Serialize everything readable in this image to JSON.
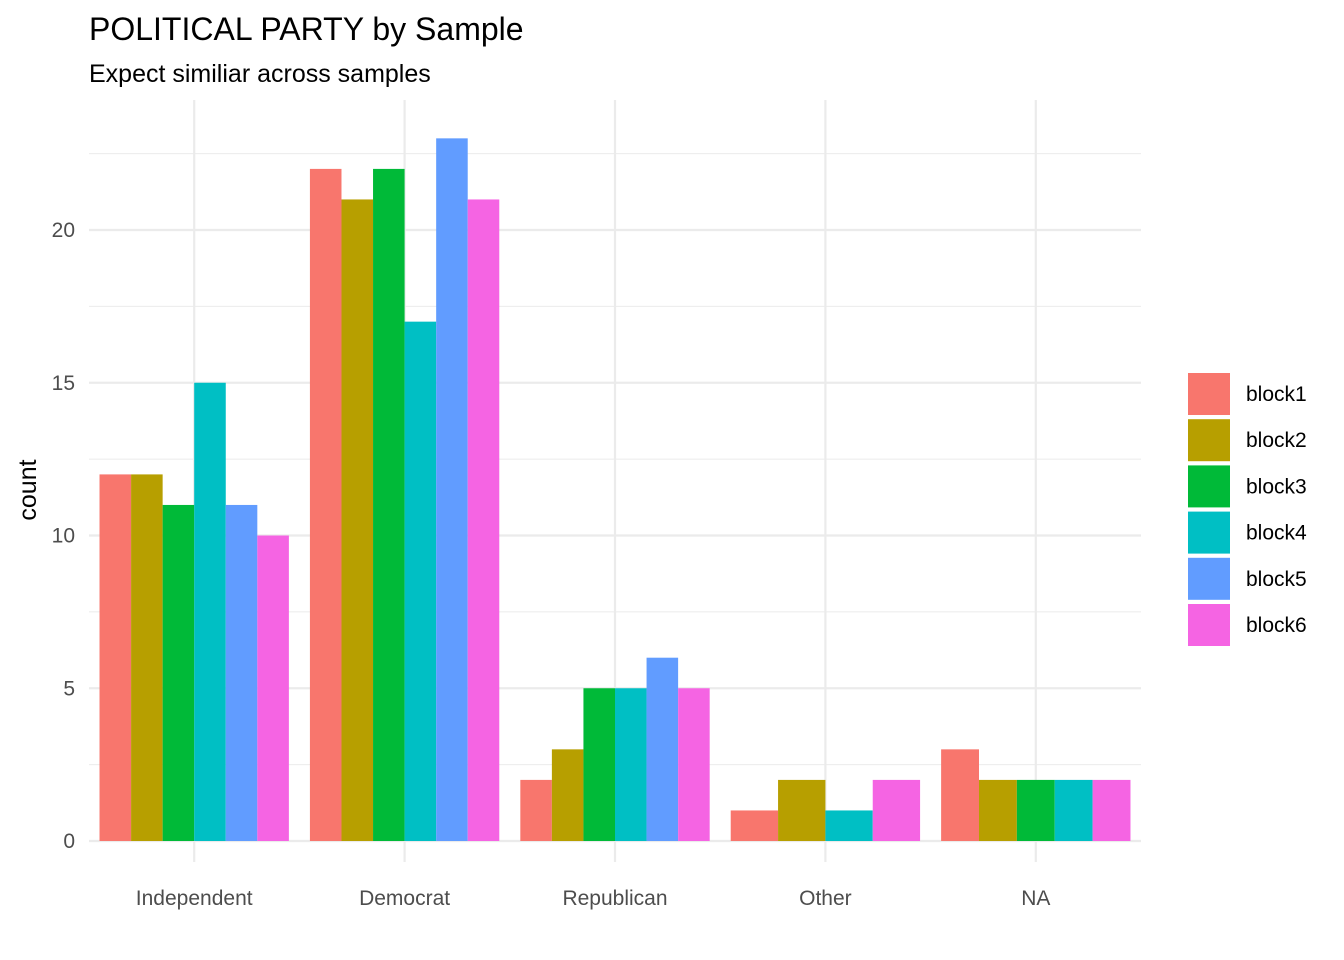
{
  "chart_data": {
    "type": "bar",
    "title": "POLITICAL PARTY by Sample",
    "subtitle": "Expect similiar across samples",
    "xlabel": "",
    "ylabel": "count",
    "ylim": [
      0,
      23.5
    ],
    "yticks": [
      0,
      5,
      10,
      15,
      20
    ],
    "categories": [
      "Independent",
      "Democrat",
      "Republican",
      "Other",
      "NA"
    ],
    "series": [
      {
        "name": "block1",
        "color": "#F8766D",
        "values": [
          12,
          22,
          2,
          1,
          3
        ]
      },
      {
        "name": "block2",
        "color": "#B79F00",
        "values": [
          12,
          21,
          3,
          2,
          2
        ]
      },
      {
        "name": "block3",
        "color": "#00BA38",
        "values": [
          11,
          22,
          5,
          null,
          2
        ]
      },
      {
        "name": "block4",
        "color": "#00BFC4",
        "values": [
          15,
          17,
          5,
          1,
          2
        ]
      },
      {
        "name": "block5",
        "color": "#619CFF",
        "values": [
          11,
          23,
          6,
          null,
          null
        ]
      },
      {
        "name": "block6",
        "color": "#F564E3",
        "values": [
          10,
          21,
          5,
          2,
          2
        ]
      }
    ],
    "grid": true,
    "legend_position": "right"
  }
}
